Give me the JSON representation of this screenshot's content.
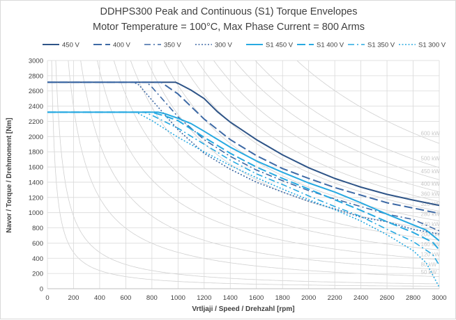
{
  "chart_data": {
    "type": "line",
    "title": "DDHPS300 Peak and Continuous (S1) Torque Envelopes",
    "subtitle": "Motor Temperature = 100°C, Max Phase Current = 800 Arms",
    "xlabel": "Vrtljaji / Speed / Drehzahl [rpm]",
    "ylabel": "Navor / Torque / Drehmoment [Nm]",
    "xlim": [
      0,
      3000
    ],
    "ylim": [
      0,
      3000
    ],
    "xticks": [
      "0",
      "200",
      "400",
      "600",
      "800",
      "1000",
      "1200",
      "1400",
      "1600",
      "1800",
      "2000",
      "2200",
      "2400",
      "2600",
      "2800",
      "3000"
    ],
    "yticks": [
      "0",
      "200",
      "400",
      "600",
      "800",
      "1000",
      "1200",
      "1400",
      "1600",
      "1800",
      "2000",
      "2200",
      "2400",
      "2600",
      "2800",
      "3000"
    ],
    "grid": true,
    "legend_position": "top",
    "series": [
      {
        "name": "450 V",
        "color": "#2e5487",
        "dash": "solid",
        "width": 2,
        "x": [
          0,
          980,
          1000,
          1100,
          1200,
          1300,
          1400,
          1600,
          1800,
          2000,
          2200,
          2400,
          2600,
          2800,
          3000
        ],
        "y": [
          2715,
          2715,
          2700,
          2610,
          2500,
          2330,
          2190,
          1960,
          1760,
          1590,
          1450,
          1335,
          1240,
          1165,
          1095
        ]
      },
      {
        "name": "400 V",
        "color": "#3d69a5",
        "dash": "long",
        "width": 2,
        "x": [
          0,
          870,
          1000,
          1200,
          1400,
          1600,
          1800,
          2000,
          2200,
          2400,
          2600,
          2800,
          3000
        ],
        "y": [
          2715,
          2715,
          2560,
          2230,
          1960,
          1750,
          1580,
          1450,
          1330,
          1230,
          1130,
          1060,
          990
        ]
      },
      {
        "name": "350 V",
        "color": "#3d69a5",
        "dash": "dashdot",
        "width": 1.6,
        "x": [
          0,
          760,
          800,
          1000,
          1200,
          1400,
          1600,
          1800,
          2000,
          2200,
          2400,
          2600,
          2800,
          3000
        ],
        "y": [
          2715,
          2715,
          2650,
          2260,
          1960,
          1740,
          1560,
          1420,
          1290,
          1180,
          1080,
          980,
          910,
          760
        ]
      },
      {
        "name": "300 V",
        "color": "#3d69a5",
        "dash": "dot",
        "width": 1.6,
        "x": [
          0,
          660,
          700,
          800,
          1000,
          1200,
          1400,
          1600,
          1800,
          2000,
          2200,
          2400,
          2600,
          2800,
          3000
        ],
        "y": [
          2715,
          2715,
          2680,
          2480,
          2090,
          1780,
          1570,
          1400,
          1270,
          1150,
          1050,
          940,
          880,
          780,
          720
        ]
      },
      {
        "name": "S1 450 V",
        "color": "#27a9e1",
        "dash": "solid",
        "width": 2,
        "x": [
          0,
          850,
          900,
          1000,
          1100,
          1200,
          1400,
          1600,
          1800,
          2000,
          2200,
          2400,
          2600,
          2800,
          2900,
          3000
        ],
        "y": [
          2320,
          2320,
          2300,
          2240,
          2170,
          2070,
          1860,
          1680,
          1530,
          1390,
          1270,
          1130,
          980,
          840,
          770,
          630
        ]
      },
      {
        "name": "S1 400 V",
        "color": "#27a9e1",
        "dash": "long",
        "width": 2,
        "x": [
          0,
          800,
          900,
          1000,
          1200,
          1400,
          1600,
          1800,
          2000,
          2200,
          2400,
          2600,
          2800,
          2950,
          3000
        ],
        "y": [
          2320,
          2320,
          2270,
          2210,
          1990,
          1780,
          1600,
          1450,
          1310,
          1170,
          1030,
          880,
          740,
          610,
          510
        ]
      },
      {
        "name": "S1 350 V",
        "color": "#27a9e1",
        "dash": "dashdot",
        "width": 1.6,
        "x": [
          0,
          740,
          800,
          1000,
          1200,
          1400,
          1600,
          1800,
          2000,
          2200,
          2400,
          2600,
          2800,
          2950,
          3000
        ],
        "y": [
          2320,
          2320,
          2280,
          2110,
          1900,
          1690,
          1510,
          1370,
          1220,
          1080,
          950,
          780,
          620,
          450,
          310
        ]
      },
      {
        "name": "S1 300 V",
        "color": "#27a9e1",
        "dash": "dot",
        "width": 1.6,
        "x": [
          0,
          680,
          800,
          1000,
          1200,
          1400,
          1600,
          1800,
          2000,
          2200,
          2400,
          2600,
          2800,
          2900,
          2950,
          3000
        ],
        "y": [
          2320,
          2320,
          2210,
          1990,
          1800,
          1620,
          1460,
          1310,
          1170,
          1040,
          890,
          710,
          500,
          340,
          180,
          20
        ]
      }
    ],
    "power_isolines": [
      {
        "label": "10 kW",
        "kw": 10
      },
      {
        "label": "20 kW",
        "kw": 20
      },
      {
        "label": "50 kW",
        "kw": 50
      },
      {
        "label": "80 kW",
        "kw": 80
      },
      {
        "label": "120 kW",
        "kw": 120
      },
      {
        "label": "160 kW",
        "kw": 160
      },
      {
        "label": "200 kW",
        "kw": 200
      },
      {
        "label": "240 kW",
        "kw": 240
      },
      {
        "label": "280 kW",
        "kw": 280
      },
      {
        "label": "320 kW",
        "kw": 320
      },
      {
        "label": "360 kW",
        "kw": 360
      },
      {
        "label": "400 kW",
        "kw": 400
      },
      {
        "label": "450 kW",
        "kw": 450
      },
      {
        "label": "500 kW",
        "kw": 500
      },
      {
        "label": "600 kW",
        "kw": 600
      }
    ],
    "colors": {
      "grid": "#d9d9d9",
      "axis": "#bfbfbf",
      "tick_text": "#404040",
      "isoline": "#d0d0d0",
      "isoline_label": "#c8c8c8"
    }
  }
}
